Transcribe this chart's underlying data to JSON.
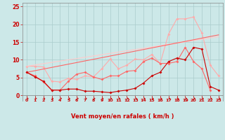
{
  "x": [
    0,
    1,
    2,
    3,
    4,
    5,
    6,
    7,
    8,
    9,
    10,
    11,
    12,
    13,
    14,
    15,
    16,
    17,
    18,
    19,
    20,
    21,
    22,
    23
  ],
  "line1": [
    6.5,
    5.2,
    4.0,
    1.5,
    1.5,
    1.8,
    1.8,
    1.2,
    1.2,
    1.0,
    0.8,
    1.2,
    1.5,
    2.0,
    3.5,
    5.5,
    6.5,
    9.5,
    10.5,
    10.0,
    13.5,
    13.0,
    2.5,
    1.5
  ],
  "line2": [
    6.5,
    5.5,
    3.8,
    1.5,
    1.5,
    4.0,
    6.0,
    6.5,
    5.2,
    4.5,
    5.5,
    5.5,
    6.8,
    7.0,
    9.5,
    10.5,
    9.0,
    9.0,
    9.5,
    13.5,
    9.5,
    7.5,
    1.5,
    null
  ],
  "line3": [
    8.2,
    8.2,
    8.0,
    4.0,
    3.8,
    4.8,
    4.5,
    5.5,
    5.2,
    7.5,
    10.2,
    7.5,
    8.5,
    10.2,
    10.0,
    11.5,
    9.0,
    17.2,
    21.5,
    21.5,
    22.0,
    17.5,
    8.5,
    5.5
  ],
  "line4_x": [
    0,
    23
  ],
  "line4_y": [
    6.5,
    17.0
  ],
  "line5_x": [
    0,
    23
  ],
  "line5_y": [
    8.2,
    16.5
  ],
  "xlabel": "Vent moyen/en rafales ( km/h )",
  "ylim": [
    -1.5,
    26
  ],
  "xlim": [
    -0.5,
    23.5
  ],
  "yticks": [
    0,
    5,
    10,
    15,
    20,
    25
  ],
  "xticks": [
    0,
    1,
    2,
    3,
    4,
    5,
    6,
    7,
    8,
    9,
    10,
    11,
    12,
    13,
    14,
    15,
    16,
    17,
    18,
    19,
    20,
    21,
    22,
    23
  ],
  "bg_color": "#cce8e8",
  "grid_color": "#aacccc",
  "line1_color": "#cc0000",
  "line2_color": "#ff6666",
  "line3_color": "#ffaaaa",
  "line4_color": "#ff6666",
  "line5_color": "#ffcccc",
  "arrow_color": "#cc0000",
  "label_color": "#cc0000"
}
